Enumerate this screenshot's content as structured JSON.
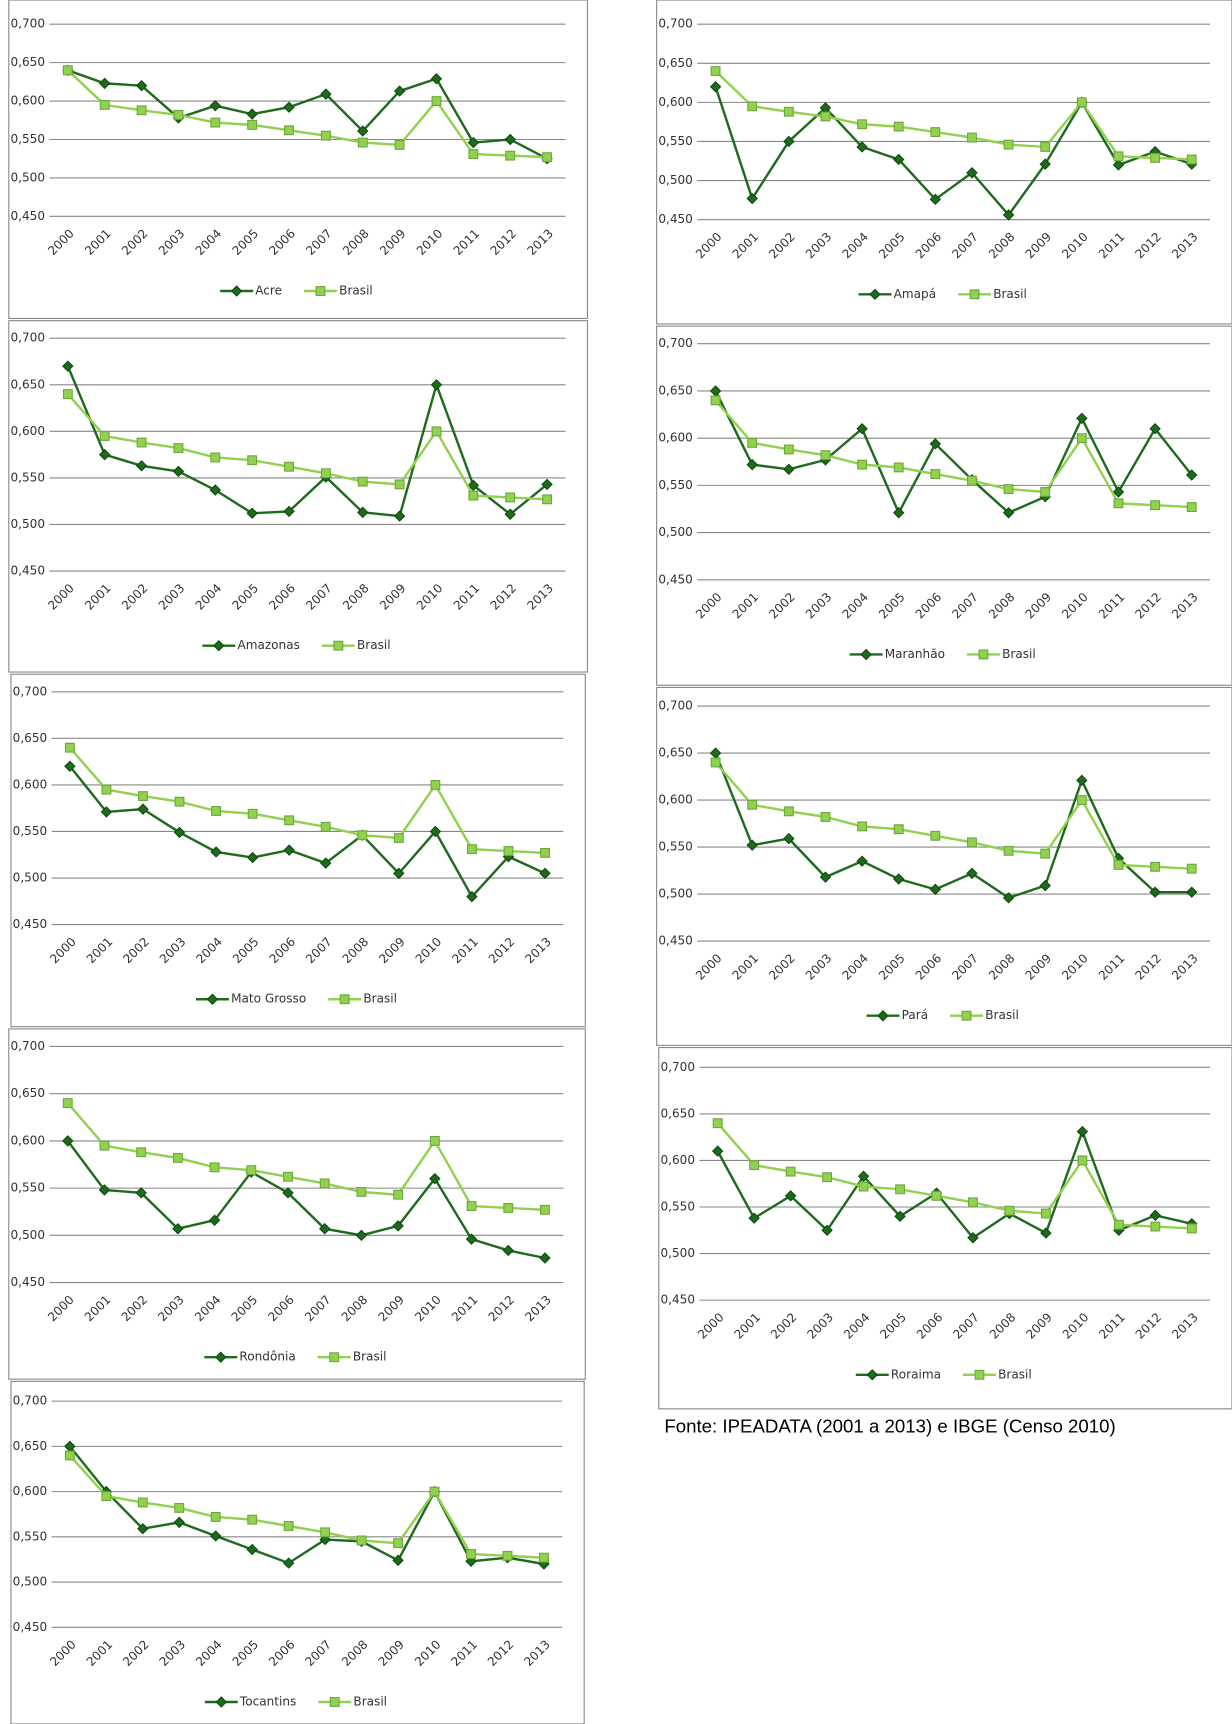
{
  "source": "Fonte: IPEADATA (2001 a 2013) e IBGE (Censo 2010)",
  "chart_data": [
    {
      "type": "line",
      "categories": [
        "2000",
        "2001",
        "2002",
        "2003",
        "2004",
        "2005",
        "2006",
        "2007",
        "2008",
        "2009",
        "2010",
        "2011",
        "2012",
        "2013"
      ],
      "ylim": [
        0.45,
        0.7
      ],
      "yticks": [
        {
          "value": 0.45,
          "label": "0,450"
        },
        {
          "value": 0.5,
          "label": "0,500"
        },
        {
          "value": 0.55,
          "label": "0,550"
        },
        {
          "value": 0.6,
          "label": "0,600"
        },
        {
          "value": 0.65,
          "label": "0,650"
        },
        {
          "value": 0.7,
          "label": "0,700"
        }
      ],
      "grid": true,
      "series": [
        {
          "name": "Acre",
          "color": "#1e6b1e",
          "values": [
            0.64,
            0.623,
            0.62,
            0.578,
            0.594,
            0.583,
            0.592,
            0.609,
            0.561,
            0.613,
            0.629,
            0.546,
            0.55,
            0.525
          ]
        },
        {
          "name": "Brasil",
          "color": "#92d050",
          "values": [
            0.64,
            0.595,
            0.588,
            0.582,
            0.572,
            0.569,
            0.562,
            0.555,
            0.546,
            0.543,
            0.6,
            0.531,
            0.529,
            0.527
          ]
        }
      ]
    },
    {
      "type": "line",
      "categories": [
        "2000",
        "2001",
        "2002",
        "2003",
        "2004",
        "2005",
        "2006",
        "2007",
        "2008",
        "2009",
        "2010",
        "2011",
        "2012",
        "2013"
      ],
      "ylim": [
        0.45,
        0.7
      ],
      "yticks": [
        {
          "value": 0.45,
          "label": "0,450"
        },
        {
          "value": 0.5,
          "label": "0,500"
        },
        {
          "value": 0.55,
          "label": "0,550"
        },
        {
          "value": 0.6,
          "label": "0,600"
        },
        {
          "value": 0.65,
          "label": "0,650"
        },
        {
          "value": 0.7,
          "label": "0,700"
        }
      ],
      "grid": true,
      "series": [
        {
          "name": "Amapá",
          "color": "#1e6b1e",
          "values": [
            0.62,
            0.477,
            0.55,
            0.593,
            0.543,
            0.527,
            0.476,
            0.51,
            0.456,
            0.521,
            0.6,
            0.52,
            0.537,
            0.521
          ]
        },
        {
          "name": "Brasil",
          "color": "#92d050",
          "values": [
            0.64,
            0.595,
            0.588,
            0.582,
            0.572,
            0.569,
            0.562,
            0.555,
            0.546,
            0.543,
            0.6,
            0.531,
            0.529,
            0.527
          ]
        }
      ]
    },
    {
      "type": "line",
      "categories": [
        "2000",
        "2001",
        "2002",
        "2003",
        "2004",
        "2005",
        "2006",
        "2007",
        "2008",
        "2009",
        "2010",
        "2011",
        "2012",
        "2013"
      ],
      "ylim": [
        0.45,
        0.7
      ],
      "yticks": [
        {
          "value": 0.45,
          "label": "0,450"
        },
        {
          "value": 0.5,
          "label": "0,500"
        },
        {
          "value": 0.55,
          "label": "0,550"
        },
        {
          "value": 0.6,
          "label": "0,600"
        },
        {
          "value": 0.65,
          "label": "0,650"
        },
        {
          "value": 0.7,
          "label": "0,700"
        }
      ],
      "grid": true,
      "series": [
        {
          "name": "Amazonas",
          "color": "#1e6b1e",
          "values": [
            0.67,
            0.575,
            0.563,
            0.557,
            0.537,
            0.512,
            0.514,
            0.551,
            0.513,
            0.509,
            0.65,
            0.542,
            0.511,
            0.543
          ]
        },
        {
          "name": "Brasil",
          "color": "#92d050",
          "values": [
            0.64,
            0.595,
            0.588,
            0.582,
            0.572,
            0.569,
            0.562,
            0.555,
            0.546,
            0.543,
            0.6,
            0.531,
            0.529,
            0.527
          ]
        }
      ]
    },
    {
      "type": "line",
      "categories": [
        "2000",
        "2001",
        "2002",
        "2003",
        "2004",
        "2005",
        "2006",
        "2007",
        "2008",
        "2009",
        "2010",
        "2011",
        "2012",
        "2013"
      ],
      "ylim": [
        0.45,
        0.7
      ],
      "yticks": [
        {
          "value": 0.45,
          "label": "0,450"
        },
        {
          "value": 0.5,
          "label": "0,500"
        },
        {
          "value": 0.55,
          "label": "0,550"
        },
        {
          "value": 0.6,
          "label": "0,600"
        },
        {
          "value": 0.65,
          "label": "0,650"
        },
        {
          "value": 0.7,
          "label": "0,700"
        }
      ],
      "grid": true,
      "series": [
        {
          "name": "Maranhão",
          "color": "#1e6b1e",
          "values": [
            0.65,
            0.572,
            0.567,
            0.577,
            0.61,
            0.521,
            0.594,
            0.556,
            0.521,
            0.538,
            0.621,
            0.543,
            0.61,
            0.561
          ]
        },
        {
          "name": "Brasil",
          "color": "#92d050",
          "values": [
            0.64,
            0.595,
            0.588,
            0.582,
            0.572,
            0.569,
            0.562,
            0.555,
            0.546,
            0.543,
            0.6,
            0.531,
            0.529,
            0.527
          ]
        }
      ]
    },
    {
      "type": "line",
      "categories": [
        "2000",
        "2001",
        "2002",
        "2003",
        "2004",
        "2005",
        "2006",
        "2007",
        "2008",
        "2009",
        "2010",
        "2011",
        "2012",
        "2013"
      ],
      "ylim": [
        0.45,
        0.7
      ],
      "yticks": [
        {
          "value": 0.45,
          "label": "0,450"
        },
        {
          "value": 0.5,
          "label": "0,500"
        },
        {
          "value": 0.55,
          "label": "0,550"
        },
        {
          "value": 0.6,
          "label": "0,600"
        },
        {
          "value": 0.65,
          "label": "0,650"
        },
        {
          "value": 0.7,
          "label": "0,700"
        }
      ],
      "grid": true,
      "series": [
        {
          "name": "Mato Grosso",
          "color": "#1e6b1e",
          "values": [
            0.62,
            0.571,
            0.574,
            0.549,
            0.528,
            0.522,
            0.53,
            0.516,
            0.546,
            0.505,
            0.55,
            0.48,
            0.523,
            0.505
          ]
        },
        {
          "name": "Brasil",
          "color": "#92d050",
          "values": [
            0.64,
            0.595,
            0.588,
            0.582,
            0.572,
            0.569,
            0.562,
            0.555,
            0.546,
            0.543,
            0.6,
            0.531,
            0.529,
            0.527
          ]
        }
      ]
    },
    {
      "type": "line",
      "categories": [
        "2000",
        "2001",
        "2002",
        "2003",
        "2004",
        "2005",
        "2006",
        "2007",
        "2008",
        "2009",
        "2010",
        "2011",
        "2012",
        "2013"
      ],
      "ylim": [
        0.45,
        0.7
      ],
      "yticks": [
        {
          "value": 0.45,
          "label": "0,450"
        },
        {
          "value": 0.5,
          "label": "0,500"
        },
        {
          "value": 0.55,
          "label": "0,550"
        },
        {
          "value": 0.6,
          "label": "0,600"
        },
        {
          "value": 0.65,
          "label": "0,650"
        },
        {
          "value": 0.7,
          "label": "0,700"
        }
      ],
      "grid": true,
      "series": [
        {
          "name": "Pará",
          "color": "#1e6b1e",
          "values": [
            0.65,
            0.552,
            0.559,
            0.518,
            0.535,
            0.516,
            0.505,
            0.522,
            0.496,
            0.509,
            0.621,
            0.538,
            0.502,
            0.502
          ]
        },
        {
          "name": "Brasil",
          "color": "#92d050",
          "values": [
            0.64,
            0.595,
            0.588,
            0.582,
            0.572,
            0.569,
            0.562,
            0.555,
            0.546,
            0.543,
            0.6,
            0.531,
            0.529,
            0.527
          ]
        }
      ]
    },
    {
      "type": "line",
      "categories": [
        "2000",
        "2001",
        "2002",
        "2003",
        "2004",
        "2005",
        "2006",
        "2007",
        "2008",
        "2009",
        "2010",
        "2011",
        "2012",
        "2013"
      ],
      "ylim": [
        0.45,
        0.7
      ],
      "yticks": [
        {
          "value": 0.45,
          "label": "0,450"
        },
        {
          "value": 0.5,
          "label": "0,500"
        },
        {
          "value": 0.55,
          "label": "0,550"
        },
        {
          "value": 0.6,
          "label": "0,600"
        },
        {
          "value": 0.65,
          "label": "0,650"
        },
        {
          "value": 0.7,
          "label": "0,700"
        }
      ],
      "grid": true,
      "series": [
        {
          "name": "Rondônia",
          "color": "#1e6b1e",
          "values": [
            0.6,
            0.548,
            0.545,
            0.507,
            0.516,
            0.567,
            0.545,
            0.507,
            0.5,
            0.51,
            0.56,
            0.496,
            0.484,
            0.476
          ]
        },
        {
          "name": "Brasil",
          "color": "#92d050",
          "values": [
            0.64,
            0.595,
            0.588,
            0.582,
            0.572,
            0.569,
            0.562,
            0.555,
            0.546,
            0.543,
            0.6,
            0.531,
            0.529,
            0.527
          ]
        }
      ]
    },
    {
      "type": "line",
      "categories": [
        "2000",
        "2001",
        "2002",
        "2003",
        "2004",
        "2005",
        "2006",
        "2007",
        "2008",
        "2009",
        "2010",
        "2011",
        "2012",
        "2013"
      ],
      "ylim": [
        0.45,
        0.7
      ],
      "yticks": [
        {
          "value": 0.45,
          "label": "0,450"
        },
        {
          "value": 0.5,
          "label": "0,500"
        },
        {
          "value": 0.55,
          "label": "0,550"
        },
        {
          "value": 0.6,
          "label": "0,600"
        },
        {
          "value": 0.65,
          "label": "0,650"
        },
        {
          "value": 0.7,
          "label": "0,700"
        }
      ],
      "grid": true,
      "series": [
        {
          "name": "Roraima",
          "color": "#1e6b1e",
          "values": [
            0.61,
            0.538,
            0.562,
            0.525,
            0.583,
            0.54,
            0.565,
            0.517,
            0.543,
            0.522,
            0.631,
            0.525,
            0.541,
            0.532
          ]
        },
        {
          "name": "Brasil",
          "color": "#92d050",
          "values": [
            0.64,
            0.595,
            0.588,
            0.582,
            0.572,
            0.569,
            0.562,
            0.555,
            0.546,
            0.543,
            0.6,
            0.531,
            0.529,
            0.527
          ]
        }
      ]
    },
    {
      "type": "line",
      "categories": [
        "2000",
        "2001",
        "2002",
        "2003",
        "2004",
        "2005",
        "2006",
        "2007",
        "2008",
        "2009",
        "2010",
        "2011",
        "2012",
        "2013"
      ],
      "ylim": [
        0.45,
        0.7
      ],
      "yticks": [
        {
          "value": 0.45,
          "label": "0,450"
        },
        {
          "value": 0.5,
          "label": "0,500"
        },
        {
          "value": 0.55,
          "label": "0,550"
        },
        {
          "value": 0.6,
          "label": "0,600"
        },
        {
          "value": 0.65,
          "label": "0,650"
        },
        {
          "value": 0.7,
          "label": "0,700"
        }
      ],
      "grid": true,
      "series": [
        {
          "name": "Tocantins",
          "color": "#1e6b1e",
          "values": [
            0.65,
            0.6,
            0.559,
            0.566,
            0.551,
            0.536,
            0.521,
            0.547,
            0.545,
            0.524,
            0.6,
            0.523,
            0.527,
            0.52
          ]
        },
        {
          "name": "Brasil",
          "color": "#92d050",
          "values": [
            0.64,
            0.595,
            0.588,
            0.582,
            0.572,
            0.569,
            0.562,
            0.555,
            0.546,
            0.543,
            0.6,
            0.531,
            0.529,
            0.527
          ]
        }
      ]
    }
  ]
}
